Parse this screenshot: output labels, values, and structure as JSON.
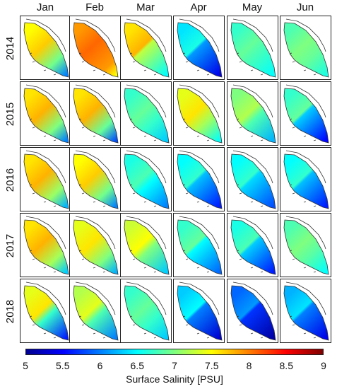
{
  "months": [
    "Jan",
    "Feb",
    "Mar",
    "Apr",
    "May",
    "Jun"
  ],
  "years": [
    "2014",
    "2015",
    "2016",
    "2017",
    "2018"
  ],
  "colorbar": {
    "label": "Surface Salinity [PSU]",
    "ticks": [
      "5",
      "5.5",
      "6",
      "6.5",
      "7",
      "7.5",
      "8",
      "8.5",
      "9"
    ],
    "min": 5,
    "max": 9,
    "colormap": [
      "#00008f",
      "#0000ff",
      "#007fff",
      "#00ffff",
      "#7fff7f",
      "#ffff00",
      "#ff7f00",
      "#ff0000",
      "#7f0000"
    ]
  },
  "salinity_grid": [
    {
      "year": "2014",
      "months": [
        {
          "month": "Jan",
          "center": 7.7,
          "south": 6.0,
          "low_extent": 0.3
        },
        {
          "month": "Feb",
          "center": 8.1,
          "south": 7.5,
          "low_extent": 0.2
        },
        {
          "month": "Mar",
          "center": 7.8,
          "south": 6.5,
          "low_extent": 0.6
        },
        {
          "month": "Apr",
          "center": 6.6,
          "south": 5.4,
          "low_extent": 0.9
        },
        {
          "month": "May",
          "center": 6.9,
          "south": 6.5,
          "low_extent": 0.5
        },
        {
          "month": "Jun",
          "center": 7.0,
          "south": 6.6,
          "low_extent": 0.4
        }
      ]
    },
    {
      "year": "2015",
      "months": [
        {
          "month": "Jan",
          "center": 7.8,
          "south": 6.0,
          "low_extent": 0.3
        },
        {
          "month": "Feb",
          "center": 7.8,
          "south": 5.8,
          "low_extent": 0.3
        },
        {
          "month": "Mar",
          "center": 6.9,
          "south": 6.3,
          "low_extent": 0.4
        },
        {
          "month": "Apr",
          "center": 7.6,
          "south": 6.5,
          "low_extent": 0.4
        },
        {
          "month": "May",
          "center": 7.2,
          "south": 6.2,
          "low_extent": 0.5
        },
        {
          "month": "Jun",
          "center": 6.9,
          "south": 5.5,
          "low_extent": 0.6
        }
      ]
    },
    {
      "year": "2016",
      "months": [
        {
          "month": "Jan",
          "center": 7.8,
          "south": 6.2,
          "low_extent": 0.3
        },
        {
          "month": "Feb",
          "center": 7.7,
          "south": 6.0,
          "low_extent": 0.3
        },
        {
          "month": "Mar",
          "center": 6.8,
          "south": 6.0,
          "low_extent": 0.5
        },
        {
          "month": "Apr",
          "center": 6.7,
          "south": 5.6,
          "low_extent": 0.7
        },
        {
          "month": "May",
          "center": 6.7,
          "south": 5.8,
          "low_extent": 0.6
        },
        {
          "month": "Jun",
          "center": 6.7,
          "south": 5.6,
          "low_extent": 0.7
        }
      ]
    },
    {
      "year": "2017",
      "months": [
        {
          "month": "Jan",
          "center": 7.8,
          "south": 6.3,
          "low_extent": 0.3
        },
        {
          "month": "Feb",
          "center": 7.6,
          "south": 6.2,
          "low_extent": 0.3
        },
        {
          "month": "Mar",
          "center": 7.5,
          "south": 6.3,
          "low_extent": 0.5
        },
        {
          "month": "Apr",
          "center": 6.9,
          "south": 5.9,
          "low_extent": 0.6
        },
        {
          "month": "May",
          "center": 6.8,
          "south": 5.6,
          "low_extent": 0.6
        },
        {
          "month": "Jun",
          "center": 7.0,
          "south": 6.5,
          "low_extent": 0.4
        }
      ]
    },
    {
      "year": "2018",
      "months": [
        {
          "month": "Jan",
          "center": 7.6,
          "south": 5.6,
          "low_extent": 0.5
        },
        {
          "month": "Feb",
          "center": 7.4,
          "south": 6.0,
          "low_extent": 0.5
        },
        {
          "month": "Mar",
          "center": 6.9,
          "south": 6.3,
          "low_extent": 0.4
        },
        {
          "month": "Apr",
          "center": 6.5,
          "south": 5.3,
          "low_extent": 0.8
        },
        {
          "month": "May",
          "center": 6.1,
          "south": 5.1,
          "low_extent": 0.9
        },
        {
          "month": "Jun",
          "center": 6.4,
          "south": 5.4,
          "low_extent": 0.7
        }
      ]
    }
  ]
}
